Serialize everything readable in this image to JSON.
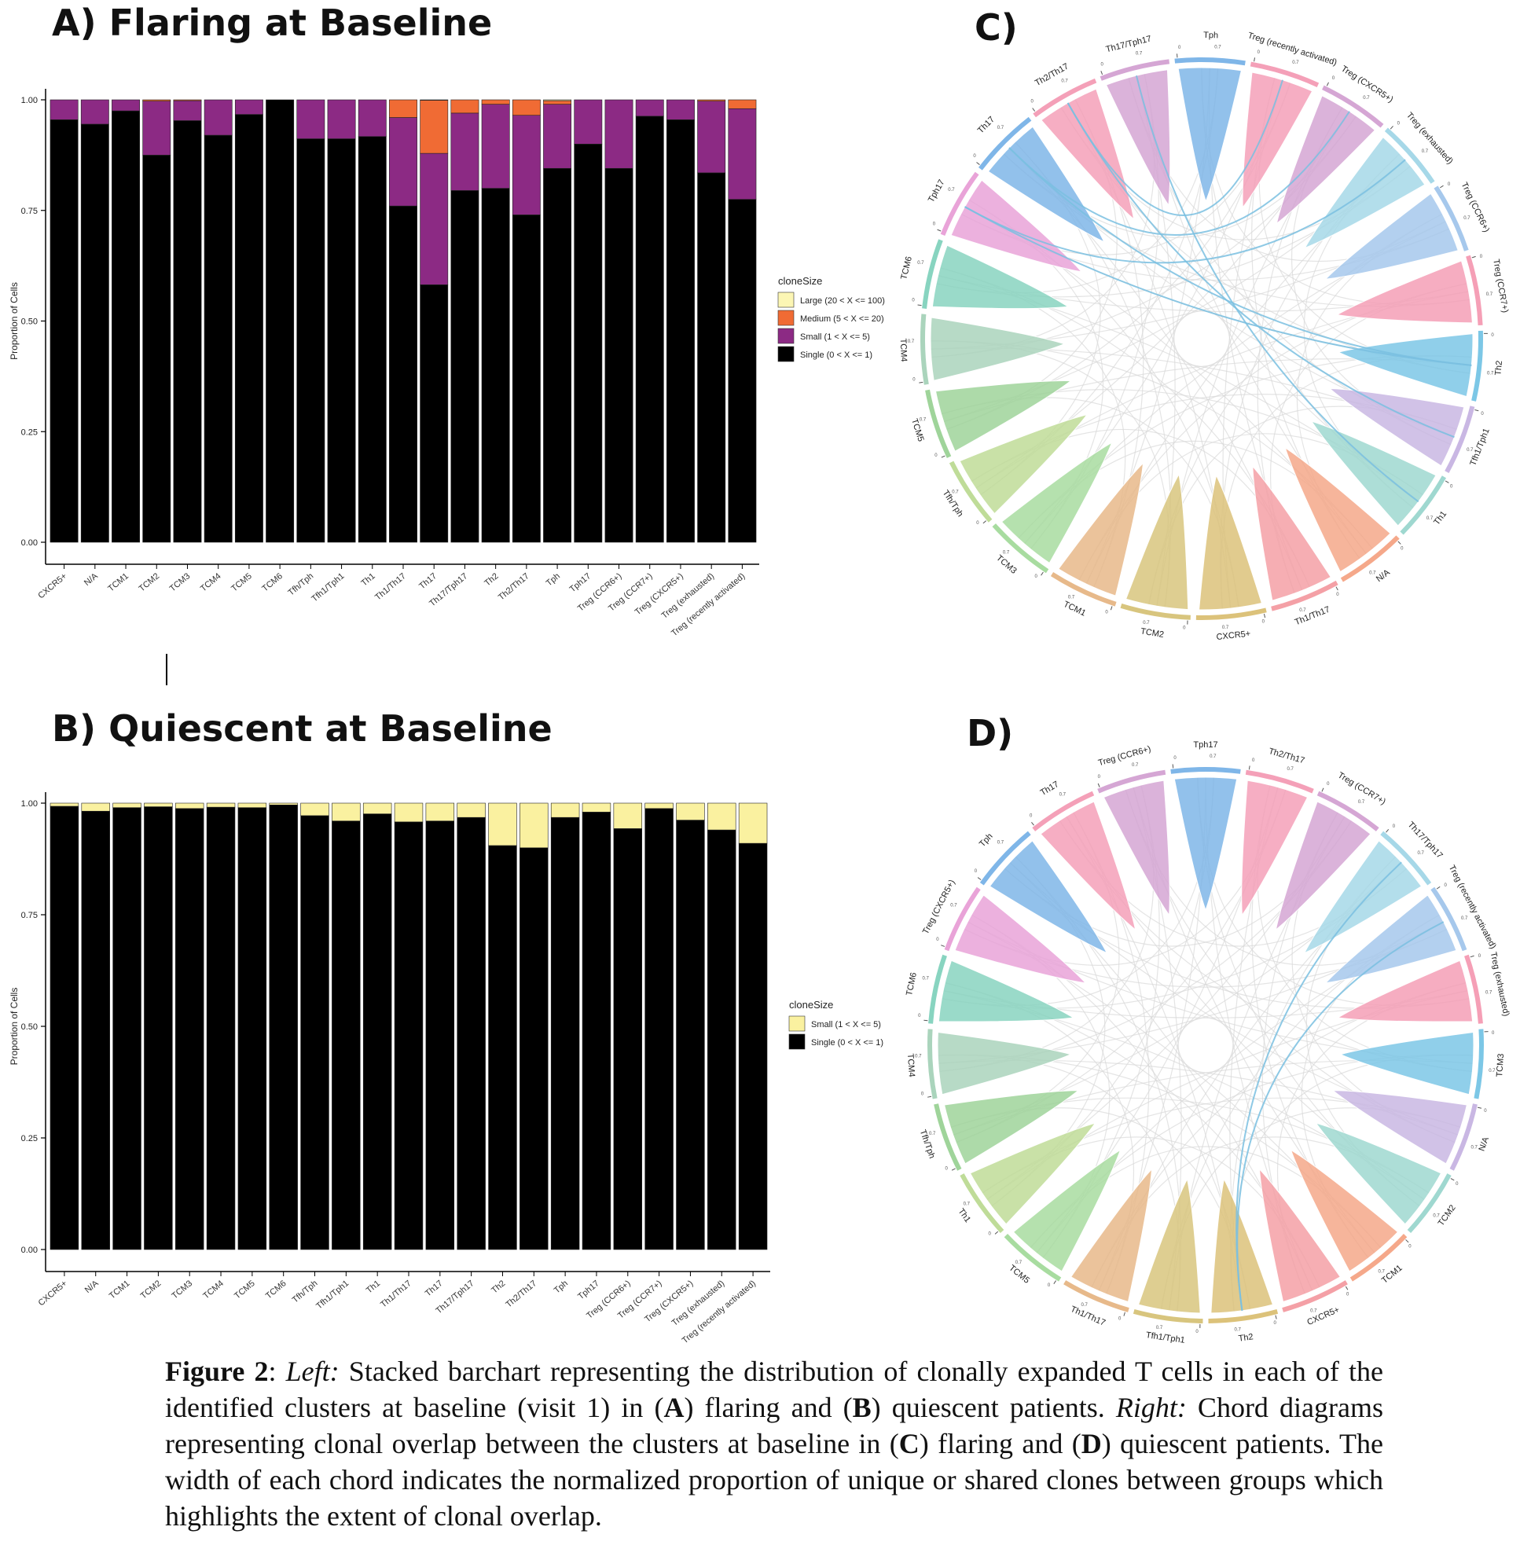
{
  "colors": {
    "Large": "#fcf6b4",
    "Medium": "#f06b34",
    "Small": "#8c2a84",
    "Single": "#000000",
    "smallB": "#faf1a0",
    "chord_palette": [
      "#7fb6e8",
      "#f4a0b8",
      "#d5a6d4",
      "#a6d8e8",
      "#a6c8ec",
      "#f59fb6",
      "#7cc7e6",
      "#c9b7e3",
      "#9fd8d0",
      "#f5a88a",
      "#f4a0a6",
      "#dcc27a",
      "#d8c57e",
      "#e7b98a",
      "#a8dca0",
      "#bfdc98",
      "#9fd49a",
      "#aad4bc",
      "#88d4c0",
      "#e9a3d8"
    ]
  },
  "chart_data": [
    {
      "id": "A",
      "type": "bar",
      "title": "A) Flaring at Baseline",
      "ylabel": "Proportion of Cells",
      "ylim": [
        0,
        1
      ],
      "yticks": [
        "0.00",
        "0.25",
        "0.50",
        "0.75",
        "1.00"
      ],
      "legend_title": "cloneSize",
      "legend": [
        {
          "key": "Large",
          "label": "Large (20 < X <= 100)"
        },
        {
          "key": "Medium",
          "label": "Medium (5 < X <= 20)"
        },
        {
          "key": "Small",
          "label": "Small (1 < X <= 5)"
        },
        {
          "key": "Single",
          "label": "Single (0 < X <= 1)"
        }
      ],
      "categories": [
        "CXCR5+",
        "N/A",
        "TCM1",
        "TCM2",
        "TCM3",
        "TCM4",
        "TCM5",
        "TCM6",
        "Tfh/Tph",
        "Tfh1/Tph1",
        "Th1",
        "Th1/Th17",
        "Th17",
        "Th17/Tph17",
        "Th2",
        "Th2/Th17",
        "Tph",
        "Tph17",
        "Treg (CCR6+)",
        "Treg (CCR7+)",
        "Treg (CXCR5+)",
        "Treg (exhausted)",
        "Treg (recently activated)"
      ],
      "series": [
        {
          "name": "Single (0 < X <= 1)",
          "key": "Single",
          "values": [
            0.955,
            0.945,
            0.975,
            0.875,
            0.953,
            0.92,
            0.967,
            1.0,
            0.912,
            0.912,
            0.917,
            0.76,
            0.582,
            0.795,
            0.8,
            0.74,
            0.845,
            0.9,
            0.845,
            0.963,
            0.955,
            0.835,
            0.775
          ]
        },
        {
          "name": "Small (1 < X <= 5)",
          "key": "Small",
          "values": [
            0.045,
            0.055,
            0.025,
            0.122,
            0.045,
            0.08,
            0.033,
            0.0,
            0.088,
            0.088,
            0.083,
            0.2,
            0.297,
            0.175,
            0.19,
            0.225,
            0.145,
            0.1,
            0.155,
            0.037,
            0.045,
            0.162,
            0.205
          ]
        },
        {
          "name": "Medium (5 < X <= 20)",
          "key": "Medium",
          "values": [
            0,
            0,
            0,
            0.003,
            0.002,
            0,
            0,
            0,
            0,
            0,
            0,
            0.04,
            0.12,
            0.03,
            0.01,
            0.035,
            0.008,
            0,
            0,
            0,
            0,
            0.003,
            0.02
          ]
        },
        {
          "name": "Large (20 < X <= 100)",
          "key": "Large",
          "values": [
            0,
            0,
            0,
            0,
            0,
            0,
            0,
            0,
            0,
            0,
            0,
            0,
            0.001,
            0,
            0,
            0,
            0.002,
            0,
            0,
            0,
            0,
            0,
            0
          ]
        }
      ]
    },
    {
      "id": "B",
      "type": "bar",
      "title": "B) Quiescent at Baseline",
      "ylabel": "Proportion of Cells",
      "ylim": [
        0,
        1
      ],
      "yticks": [
        "0.00",
        "0.25",
        "0.50",
        "0.75",
        "1.00"
      ],
      "legend_title": "cloneSize",
      "legend": [
        {
          "key": "smallB",
          "label": "Small (1 < X <= 5)"
        },
        {
          "key": "Single",
          "label": "Single (0 < X <= 1)"
        }
      ],
      "categories": [
        "CXCR5+",
        "N/A",
        "TCM1",
        "TCM2",
        "TCM3",
        "TCM4",
        "TCM5",
        "TCM6",
        "Tfh/Tph",
        "Tfh1/Tph1",
        "Th1",
        "Th1/Th17",
        "Th17",
        "Th17/Tph17",
        "Th2",
        "Th2/Th17",
        "Tph",
        "Tph17",
        "Treg (CCR6+)",
        "Treg (CCR7+)",
        "Treg (CXCR5+)",
        "Treg (exhausted)",
        "Treg (recently activated)"
      ],
      "series": [
        {
          "name": "Single (0 < X <= 1)",
          "key": "Single",
          "values": [
            0.993,
            0.982,
            0.99,
            0.992,
            0.988,
            0.991,
            0.99,
            0.996,
            0.972,
            0.96,
            0.976,
            0.958,
            0.96,
            0.968,
            0.905,
            0.9,
            0.968,
            0.98,
            0.943,
            0.988,
            0.962,
            0.94,
            0.91
          ]
        },
        {
          "name": "Small (1 < X <= 5)",
          "key": "smallB",
          "values": [
            0.007,
            0.018,
            0.01,
            0.008,
            0.012,
            0.009,
            0.01,
            0.004,
            0.028,
            0.04,
            0.024,
            0.042,
            0.04,
            0.032,
            0.095,
            0.1,
            0.032,
            0.02,
            0.057,
            0.012,
            0.038,
            0.06,
            0.09
          ]
        }
      ]
    },
    {
      "id": "C",
      "type": "chord",
      "title": "C)",
      "tick_labels": [
        "0",
        "0.7"
      ],
      "sectors": [
        "Tph",
        "Treg (recently activated)",
        "Treg (CXCR5+)",
        "Treg (exhausted)",
        "Treg (CCR6+)",
        "Treg (CCR7+)",
        "Th2",
        "Tfh1/Tph1",
        "Th1",
        "N/A",
        "Th1/Th17",
        "CXCR5+",
        "TCM2",
        "TCM1",
        "TCM3",
        "Tfh/Tph",
        "TCM5",
        "TCM4",
        "TCM6",
        "Tph17",
        "Th17",
        "Th2/Th17",
        "Th17/Tph17"
      ]
    },
    {
      "id": "D",
      "type": "chord",
      "title": "D)",
      "tick_labels": [
        "0",
        "0.7"
      ],
      "sectors": [
        "Tph17",
        "Th2/Th17",
        "Treg (CCR7+)",
        "Th17/Tph17",
        "Treg (recently activated)",
        "Treg (exhausted)",
        "TCM3",
        "N/A",
        "TCM2",
        "TCM1",
        "CXCR5+",
        "Th2",
        "Tfh1/Tph1",
        "Th1/Th17",
        "TCM5",
        "Th1",
        "Tfh/Tph",
        "TCM4",
        "TCM6",
        "Treg (CXCR5+)",
        "Tph",
        "Th17",
        "Treg (CCR6+)"
      ]
    }
  ],
  "caption": {
    "fig": "Figure 2",
    "colon": ": ",
    "left": "Left:",
    "t1": " Stacked barchart representing the distribution of clonally expanded T cells in each of the identified clusters at baseline (visit 1) in (",
    "a": "A",
    "t2": ") flaring and (",
    "b": "B",
    "t3": ") quiescent patients. ",
    "right": "Right:",
    "t4": " Chord diagrams representing clonal overlap between the clusters at baseline in (",
    "c": "C",
    "t5": ") flaring and (",
    "d": "D",
    "t6": ") quiescent patients. The width of each chord indicates the normalized proportion of unique or shared clones between groups which highlights the extent of clonal overlap."
  }
}
